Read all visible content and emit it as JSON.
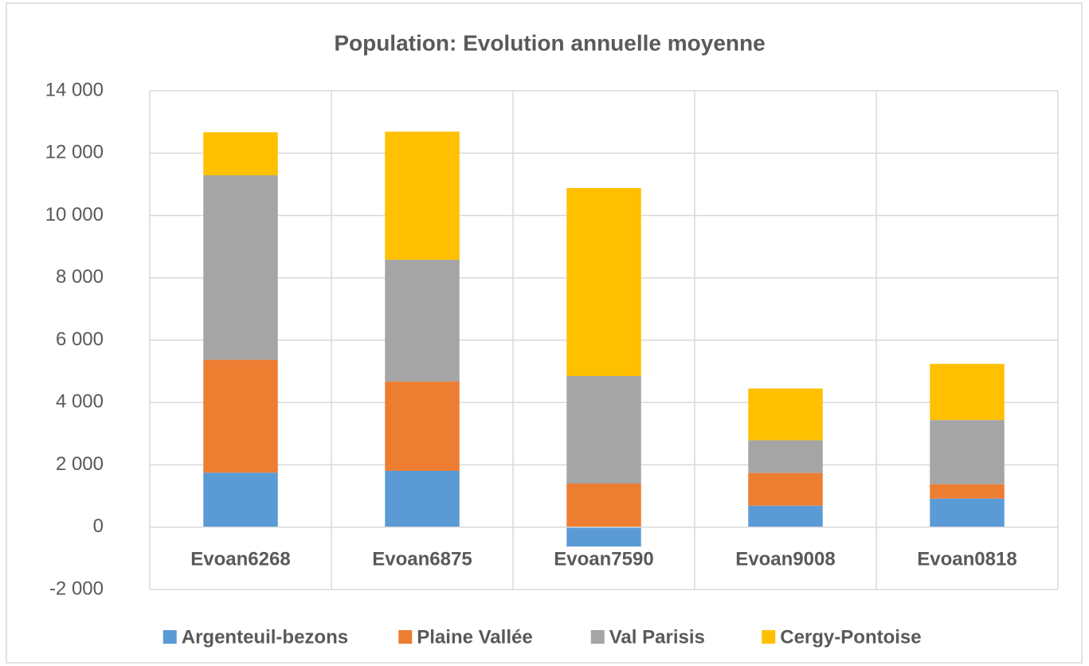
{
  "chart_data": {
    "type": "stacked_bar",
    "title": "Population: Evolution annuelle moyenne",
    "categories": [
      "Evoan6268",
      "Evoan6875",
      "Evoan7590",
      "Evoan9008",
      "Evoan0818"
    ],
    "series": [
      {
        "name": "Argenteuil-bezons",
        "color": "#5b9bd5",
        "values": [
          1750,
          1810,
          -620,
          690,
          920
        ]
      },
      {
        "name": "Plaine Vallée",
        "color": "#ed7d31",
        "values": [
          3620,
          2860,
          1400,
          1050,
          460
        ]
      },
      {
        "name": "Val Parisis",
        "color": "#a5a5a5",
        "values": [
          5920,
          3910,
          3450,
          1050,
          2060
        ]
      },
      {
        "name": "Cergy-Pontoise",
        "color": "#ffc000",
        "values": [
          1380,
          4110,
          6030,
          1660,
          1800
        ]
      }
    ],
    "ylim": [
      -2000,
      14000
    ],
    "yticks": [
      {
        "value": -2000,
        "label": "-2 000"
      },
      0,
      {
        "value": 2000,
        "label": "2 000"
      },
      {
        "value": 4000,
        "label": "4 000"
      },
      {
        "value": 6000,
        "label": "6 000"
      },
      {
        "value": 8000,
        "label": "8 000"
      },
      {
        "value": 10000,
        "label": "10 000"
      },
      {
        "value": 12000,
        "label": "12 000"
      },
      {
        "value": 14000,
        "label": "14 000"
      }
    ],
    "grid": true,
    "legend": "bottom"
  }
}
